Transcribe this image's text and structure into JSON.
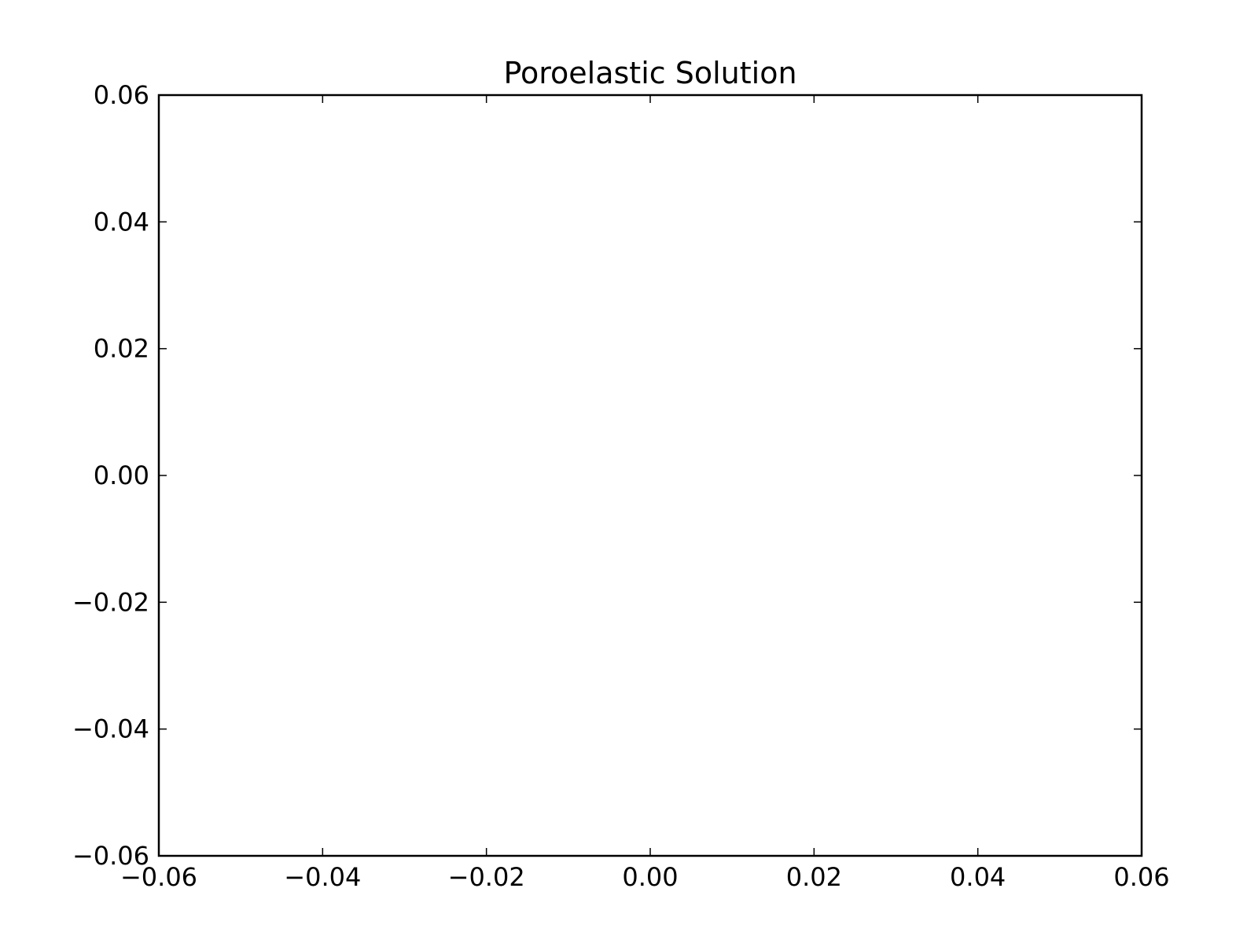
{
  "chart_data": {
    "type": "line",
    "title": "Poroelastic Solution",
    "xlabel": "",
    "ylabel": "",
    "xlim": [
      -0.06,
      0.06
    ],
    "ylim": [
      -0.06,
      0.06
    ],
    "x_ticks": [
      -0.06,
      -0.04,
      -0.02,
      0.0,
      0.02,
      0.04,
      0.06
    ],
    "y_ticks": [
      -0.06,
      -0.04,
      -0.02,
      0.0,
      0.02,
      0.04,
      0.06
    ],
    "x_tick_labels": [
      "−0.06",
      "−0.04",
      "−0.02",
      "0.00",
      "0.02",
      "0.04",
      "0.06"
    ],
    "y_tick_labels": [
      "−0.06",
      "−0.04",
      "−0.02",
      "0.00",
      "0.02",
      "0.04",
      "0.06"
    ],
    "grid": false,
    "series": [],
    "colors": {
      "background": "#ffffff",
      "axes": "#000000",
      "text": "#000000"
    }
  }
}
